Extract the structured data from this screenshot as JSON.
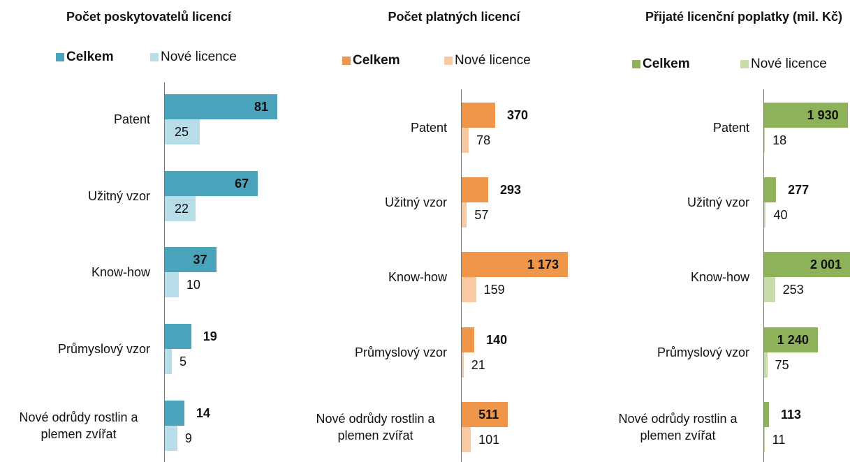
{
  "chart_data": [
    {
      "type": "bar",
      "title": "Počet poskytovatelů licencí",
      "categories": [
        "Patent",
        "Užitný vzor",
        "Know-how",
        "Průmyslový vzor",
        "Nové odrůdy rostlin a plemen zvířat"
      ],
      "series": [
        {
          "name": "Celkem",
          "color": "#4ba3bb",
          "values": [
            81,
            67,
            37,
            19,
            14
          ]
        },
        {
          "name": "Nové licence",
          "color": "#b7dde8",
          "values": [
            25,
            22,
            10,
            5,
            9
          ]
        }
      ]
    },
    {
      "type": "bar",
      "title": "Počet platných licencí",
      "categories": [
        "Patent",
        "Užitný vzor",
        "Know-how",
        "Průmyslový vzor",
        "Nové odrůdy rostlin a plemen zvířat"
      ],
      "series": [
        {
          "name": "Celkem",
          "color": "#f0964a",
          "values": [
            370,
            293,
            1173,
            140,
            511
          ],
          "value_labels": [
            "370",
            "293",
            "1 173",
            "140",
            "511"
          ]
        },
        {
          "name": "Nové licence",
          "color": "#f9c9a1",
          "values": [
            78,
            57,
            159,
            21,
            101
          ]
        }
      ]
    },
    {
      "type": "bar",
      "title": "Přijaté licenční poplatky (mil. Kč)",
      "categories": [
        "Patent",
        "Užitný vzor",
        "Know-how",
        "Průmyslový vzor",
        "Nové odrůdy rostlin a plemen zvířat"
      ],
      "series": [
        {
          "name": "Celkem",
          "color": "#8db25a",
          "values": [
            1930,
            277,
            2001,
            1240,
            113
          ],
          "value_labels": [
            "1 930",
            "277",
            "2 001",
            "1 240",
            "113"
          ]
        },
        {
          "name": "Nové licence",
          "color": "#c8dbaa",
          "values": [
            18,
            40,
            253,
            75,
            11
          ]
        }
      ]
    }
  ]
}
